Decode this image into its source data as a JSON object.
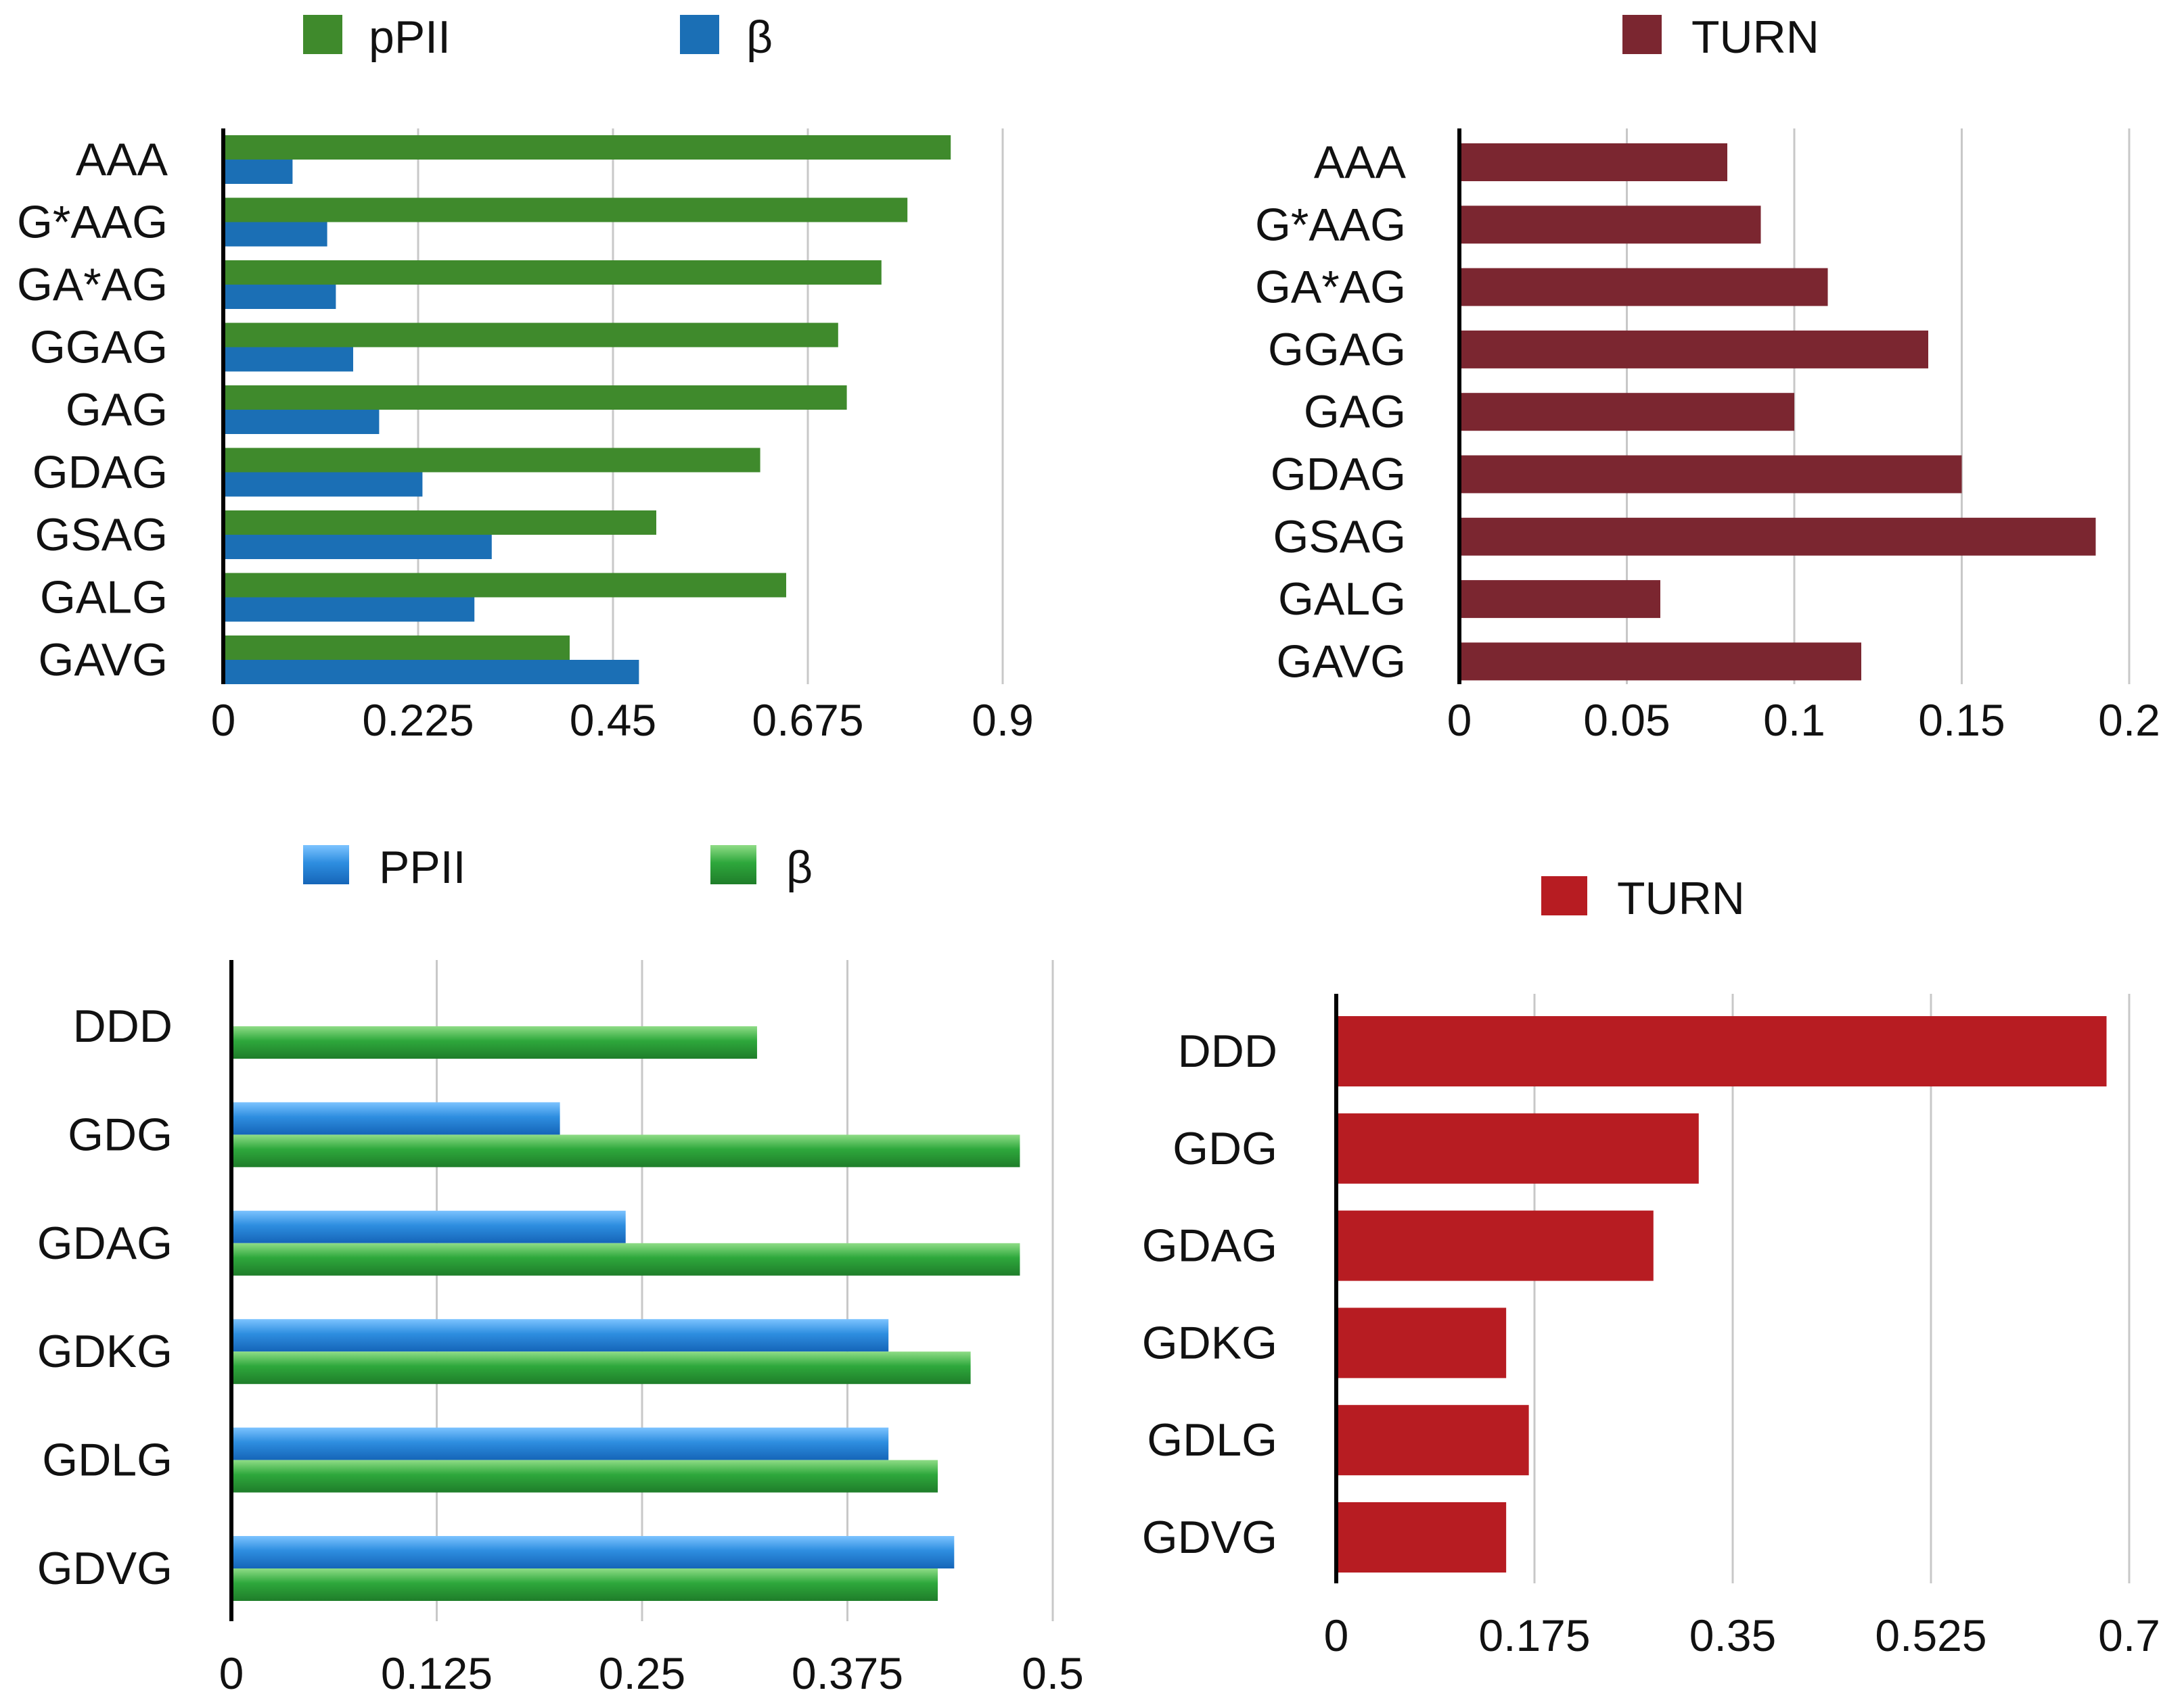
{
  "chart_data": [
    {
      "type": "bar",
      "orientation": "horizontal",
      "categories": [
        "AAA",
        "G*AAG",
        "GA*AG",
        "GGAG",
        "GAG",
        "GDAG",
        "GSAG",
        "GALG",
        "GAVG"
      ],
      "series": [
        {
          "name": "pPII",
          "values": [
            0.84,
            0.79,
            0.76,
            0.71,
            0.72,
            0.62,
            0.5,
            0.65,
            0.4
          ],
          "color": "#3f8a2c"
        },
        {
          "name": "β",
          "values": [
            0.08,
            0.12,
            0.13,
            0.15,
            0.18,
            0.23,
            0.31,
            0.29,
            0.48
          ],
          "color": "#1b6fb5"
        }
      ],
      "xlim": [
        0,
        0.9
      ],
      "xticks": [
        "0",
        "0.225",
        "0.45",
        "0.675",
        "0.9"
      ],
      "grid": true,
      "legend_position": "top"
    },
    {
      "type": "bar",
      "orientation": "horizontal",
      "categories": [
        "AAA",
        "G*AAG",
        "GA*AG",
        "GGAG",
        "GAG",
        "GDAG",
        "GSAG",
        "GALG",
        "GAVG"
      ],
      "series": [
        {
          "name": "TURN",
          "values": [
            0.08,
            0.09,
            0.11,
            0.14,
            0.1,
            0.15,
            0.19,
            0.06,
            0.12
          ],
          "color": "#7b2630"
        }
      ],
      "xlim": [
        0,
        0.2
      ],
      "xticks": [
        "0",
        "0.05",
        "0.1",
        "0.15",
        "0.2"
      ],
      "grid": true,
      "legend_position": "top"
    },
    {
      "type": "bar",
      "orientation": "horizontal",
      "categories": [
        "DDD",
        "GDG",
        "GDAG",
        "GDKG",
        "GDLG",
        "GDVG"
      ],
      "series": [
        {
          "name": "PPII",
          "values": [
            0,
            0.2,
            0.24,
            0.4,
            0.4,
            0.44
          ],
          "color": "#2e8ee0"
        },
        {
          "name": "β",
          "values": [
            0.32,
            0.48,
            0.48,
            0.45,
            0.43,
            0.43
          ],
          "color": "#2ea83c"
        }
      ],
      "xlim": [
        0,
        0.5
      ],
      "xticks": [
        "0",
        "0.125",
        "0.25",
        "0.375",
        "0.5"
      ],
      "grid": true,
      "legend_position": "top"
    },
    {
      "type": "bar",
      "orientation": "horizontal",
      "categories": [
        "DDD",
        "GDG",
        "GDAG",
        "GDKG",
        "GDLG",
        "GDVG"
      ],
      "series": [
        {
          "name": "TURN",
          "values": [
            0.68,
            0.32,
            0.28,
            0.15,
            0.17,
            0.15
          ],
          "color": "#b71c22"
        }
      ],
      "xlim": [
        0,
        0.7
      ],
      "xticks": [
        "0",
        "0.175",
        "0.35",
        "0.525",
        "0.7"
      ],
      "grid": true,
      "legend_position": "top"
    }
  ]
}
